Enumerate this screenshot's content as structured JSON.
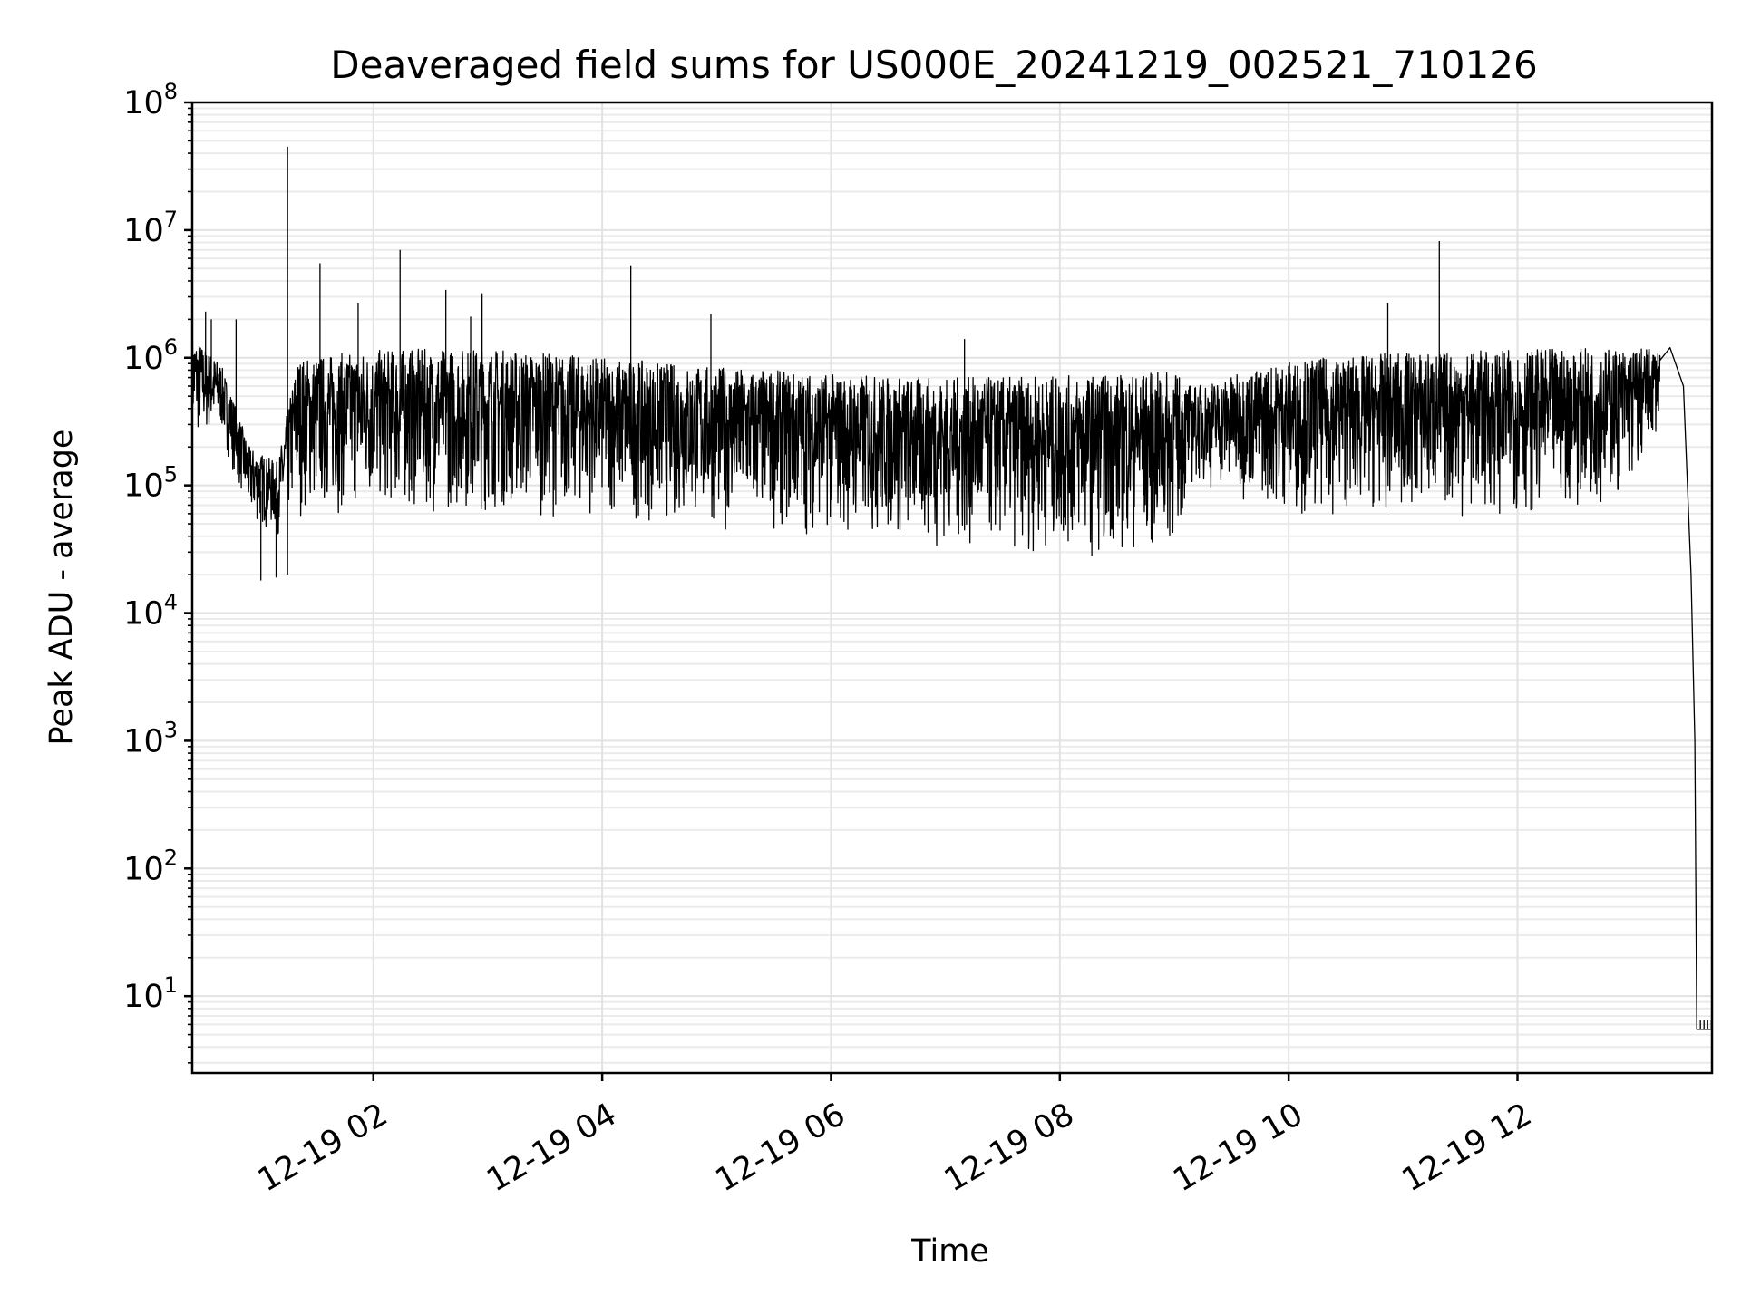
{
  "chart_data": {
    "type": "line",
    "title": "Deaveraged field sums for US000E_20241219_002521_710126",
    "xlabel": "Time",
    "ylabel": "Peak ADU - average",
    "yscale": "log",
    "ylim": [
      2.5,
      100000000
    ],
    "xlim": [
      "2024-12-19 00:25",
      "2024-12-19 13:42"
    ],
    "y_ticks": [
      {
        "base": "10",
        "exp": "1",
        "value": 10
      },
      {
        "base": "10",
        "exp": "2",
        "value": 100
      },
      {
        "base": "10",
        "exp": "3",
        "value": 1000
      },
      {
        "base": "10",
        "exp": "4",
        "value": 10000
      },
      {
        "base": "10",
        "exp": "5",
        "value": 100000
      },
      {
        "base": "10",
        "exp": "6",
        "value": 1000000
      },
      {
        "base": "10",
        "exp": "7",
        "value": 10000000
      },
      {
        "base": "10",
        "exp": "8",
        "value": 100000000
      }
    ],
    "x_ticks": [
      {
        "label": "12-19 02",
        "time": "2024-12-19 02:00"
      },
      {
        "label": "12-19 04",
        "time": "2024-12-19 04:00"
      },
      {
        "label": "12-19 06",
        "time": "2024-12-19 06:00"
      },
      {
        "label": "12-19 08",
        "time": "2024-12-19 08:00"
      },
      {
        "label": "12-19 10",
        "time": "2024-12-19 10:00"
      },
      {
        "label": "12-19 12",
        "time": "2024-12-19 12:00"
      }
    ],
    "grid": true,
    "series": [
      {
        "color": "#000000",
        "points": [
          {
            "x": "2024-12-19 00:25",
            "y": 400000
          },
          {
            "x": "2024-12-19 00:30",
            "y": 600000
          },
          {
            "x": "2024-12-19 00:35",
            "y": 450000
          },
          {
            "x": "2024-12-19 00:40",
            "y": 350000
          },
          {
            "x": "2024-12-19 00:45",
            "y": 180000
          },
          {
            "x": "2024-12-19 00:52",
            "y": 80000
          },
          {
            "x": "2024-12-19 01:00",
            "y": 60000
          },
          {
            "x": "2024-12-19 01:10",
            "y": 70000
          },
          {
            "x": "2024-12-19 01:18",
            "y": 150000
          },
          {
            "x": "2024-12-19 01:30",
            "y": 300000
          },
          {
            "x": "2024-12-19 02:00",
            "y": 350000
          },
          {
            "x": "2024-12-19 03:00",
            "y": 320000
          },
          {
            "x": "2024-12-19 04:00",
            "y": 260000
          },
          {
            "x": "2024-12-19 05:00",
            "y": 230000
          },
          {
            "x": "2024-12-19 06:00",
            "y": 200000
          },
          {
            "x": "2024-12-19 07:00",
            "y": 140000
          },
          {
            "x": "2024-12-19 08:00",
            "y": 130000
          },
          {
            "x": "2024-12-19 09:00",
            "y": 130000
          },
          {
            "x": "2024-12-19 09:10",
            "y": 250000
          },
          {
            "x": "2024-12-19 10:00",
            "y": 300000
          },
          {
            "x": "2024-12-19 11:00",
            "y": 320000
          },
          {
            "x": "2024-12-19 12:00",
            "y": 330000
          },
          {
            "x": "2024-12-19 13:00",
            "y": 350000
          },
          {
            "x": "2024-12-19 13:20",
            "y": 1200000
          },
          {
            "x": "2024-12-19 13:27",
            "y": 600000
          },
          {
            "x": "2024-12-19 13:31",
            "y": 20000
          },
          {
            "x": "2024-12-19 13:33",
            "y": 1000
          },
          {
            "x": "2024-12-19 13:34",
            "y": 5.5
          },
          {
            "x": "2024-12-19 13:42",
            "y": 5.5
          }
        ],
        "band_envelope": [
          {
            "x": "2024-12-19 00:25",
            "lo": 200000,
            "hi": 1500000
          },
          {
            "x": "2024-12-19 00:40",
            "lo": 250000,
            "hi": 900000
          },
          {
            "x": "2024-12-19 00:55",
            "lo": 50000,
            "hi": 200000
          },
          {
            "x": "2024-12-19 01:10",
            "lo": 40000,
            "hi": 150000
          },
          {
            "x": "2024-12-19 01:20",
            "lo": 55000,
            "hi": 1000000
          },
          {
            "x": "2024-12-19 02:00",
            "lo": 60000,
            "hi": 1150000
          },
          {
            "x": "2024-12-19 03:00",
            "lo": 60000,
            "hi": 1200000
          },
          {
            "x": "2024-12-19 04:00",
            "lo": 55000,
            "hi": 1000000
          },
          {
            "x": "2024-12-19 05:00",
            "lo": 45000,
            "hi": 850000
          },
          {
            "x": "2024-12-19 06:00",
            "lo": 40000,
            "hi": 750000
          },
          {
            "x": "2024-12-19 07:00",
            "lo": 30000,
            "hi": 700000
          },
          {
            "x": "2024-12-19 08:00",
            "lo": 28000,
            "hi": 720000
          },
          {
            "x": "2024-12-19 09:00",
            "lo": 28000,
            "hi": 780000
          },
          {
            "x": "2024-12-19 09:10",
            "lo": 100000,
            "hi": 600000
          },
          {
            "x": "2024-12-19 10:00",
            "lo": 60000,
            "hi": 950000
          },
          {
            "x": "2024-12-19 11:00",
            "lo": 55000,
            "hi": 1100000
          },
          {
            "x": "2024-12-19 12:00",
            "lo": 55000,
            "hi": 1150000
          },
          {
            "x": "2024-12-19 13:00",
            "lo": 80000,
            "hi": 1200000
          },
          {
            "x": "2024-12-19 13:15",
            "lo": 300000,
            "hi": 1200000
          }
        ],
        "spikes": [
          {
            "x": "2024-12-19 00:32",
            "y": 2300000
          },
          {
            "x": "2024-12-19 00:35",
            "y": 2000000
          },
          {
            "x": "2024-12-19 00:48",
            "y": 2000000
          },
          {
            "x": "2024-12-19 01:01",
            "y": 18000
          },
          {
            "x": "2024-12-19 01:09",
            "y": 19000
          },
          {
            "x": "2024-12-19 01:15",
            "y": 45000000
          },
          {
            "x": "2024-12-19 01:15",
            "y": 20000
          },
          {
            "x": "2024-12-19 01:32",
            "y": 5500000
          },
          {
            "x": "2024-12-19 01:52",
            "y": 2700000
          },
          {
            "x": "2024-12-19 02:14",
            "y": 7000000
          },
          {
            "x": "2024-12-19 02:38",
            "y": 3400000
          },
          {
            "x": "2024-12-19 02:51",
            "y": 2100000
          },
          {
            "x": "2024-12-19 02:57",
            "y": 3200000
          },
          {
            "x": "2024-12-19 04:15",
            "y": 5300000
          },
          {
            "x": "2024-12-19 04:57",
            "y": 2200000
          },
          {
            "x": "2024-12-19 07:10",
            "y": 1400000
          },
          {
            "x": "2024-12-19 10:52",
            "y": 2700000
          },
          {
            "x": "2024-12-19 11:19",
            "y": 8200000
          }
        ]
      }
    ]
  }
}
